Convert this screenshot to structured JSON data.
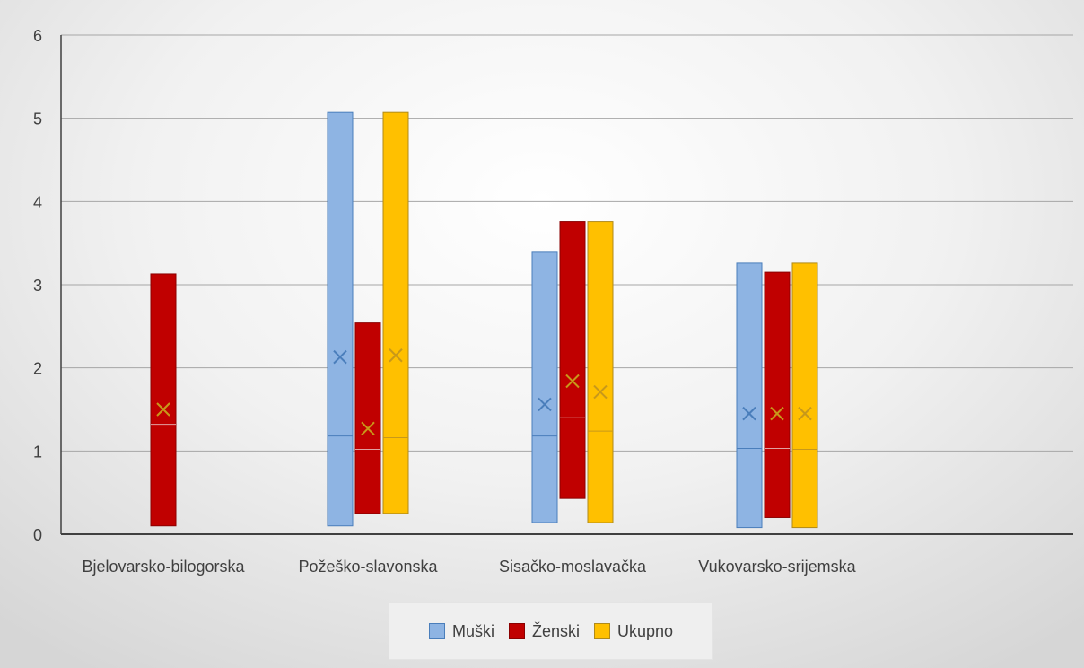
{
  "chart_data": {
    "type": "box",
    "title": "",
    "xlabel": "",
    "ylabel": "",
    "ylim": [
      0,
      6
    ],
    "yticks": [
      0,
      1,
      2,
      3,
      4,
      5,
      6
    ],
    "grid": true,
    "legend_position": "bottom",
    "categories": [
      "Bjelovarsko-bilogorska",
      "Požeško-slavonska",
      "Sisačko-moslavačka",
      "Vukovarsko-srijemska"
    ],
    "series": [
      {
        "name": "Muški",
        "color": "#8EB4E3",
        "border": "#4A7EBB",
        "boxes": [
          null,
          {
            "min": 0.1,
            "max": 5.07,
            "median": 1.18,
            "mean": 2.13
          },
          {
            "min": 0.14,
            "max": 3.39,
            "median": 1.18,
            "mean": 1.56
          },
          {
            "min": 0.08,
            "max": 3.26,
            "median": 1.03,
            "mean": 1.45
          }
        ]
      },
      {
        "name": "Ženski",
        "color": "#C00000",
        "border": "#8B0000",
        "boxes": [
          {
            "min": 0.1,
            "max": 3.13,
            "median": 1.32,
            "mean": 1.5
          },
          {
            "min": 0.25,
            "max": 2.54,
            "median": 1.02,
            "mean": 1.27
          },
          {
            "min": 0.43,
            "max": 3.76,
            "median": 1.4,
            "mean": 1.84
          },
          {
            "min": 0.2,
            "max": 3.15,
            "median": 1.03,
            "mean": 1.45
          }
        ]
      },
      {
        "name": "Ukupno",
        "color": "#FFC000",
        "border": "#B08A1A",
        "boxes": [
          null,
          {
            "min": 0.25,
            "max": 5.07,
            "median": 1.16,
            "mean": 2.15
          },
          {
            "min": 0.14,
            "max": 3.76,
            "median": 1.24,
            "mean": 1.71
          },
          {
            "min": 0.08,
            "max": 3.26,
            "median": 1.02,
            "mean": 1.45
          }
        ]
      }
    ]
  }
}
